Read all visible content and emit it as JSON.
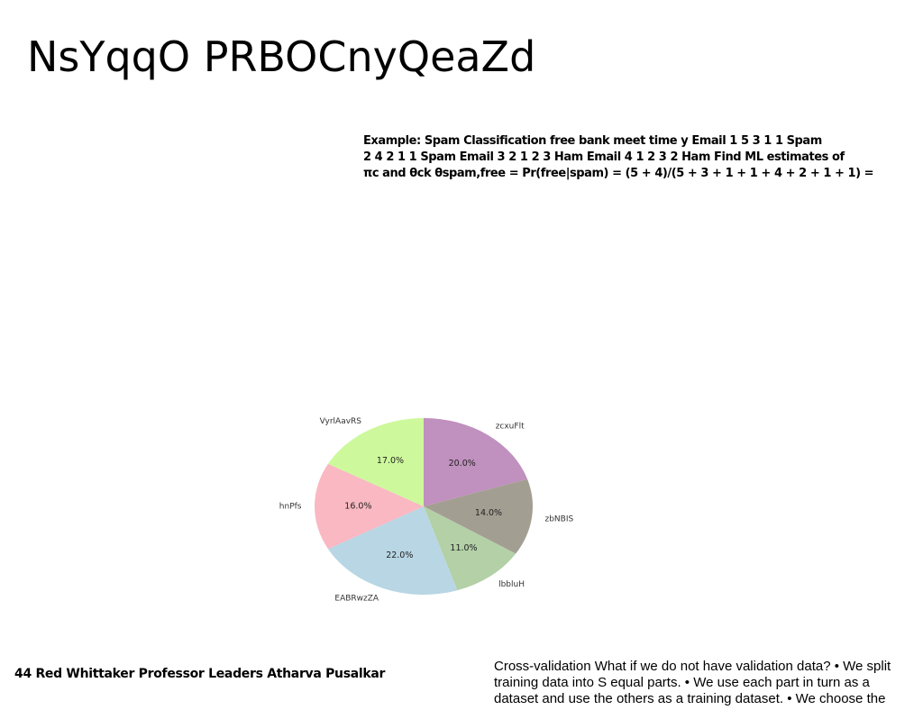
{
  "slide": {
    "title": "NsYqqO PRBOCnyQeaZd",
    "example_lines": [
      "Example: Spam Classification free bank meet time y Email 1 5 3 1 1 Spam",
      "2 4 2 1 1 Spam Email 3 2 1 2 3 Ham Email 4 1 2 3 2 Ham Find ML estimates of",
      "πc and θck θspam,free = Pr(free|spam) = (5 + 4)/(5 + 3 + 1 + 1 + 4 + 2 + 1 + 1) ="
    ],
    "footer_left": "44 Red Whittaker Professor Leaders Atharva Pusalkar",
    "footer_right_lines": [
      "Cross-validation What if we do not have validation data? • We split",
      "training data into S equal parts. • We use each part in turn as a",
      "dataset and use the others as a training dataset. • We choose the"
    ]
  },
  "chart_data": {
    "type": "pie",
    "start_angle_deg": 90,
    "direction": "clockwise",
    "slices": [
      {
        "label": "zcxuFlt",
        "value": 20.0,
        "pct_label": "20.0%",
        "color": "#c090be"
      },
      {
        "label": "zbNBIS",
        "value": 14.0,
        "pct_label": "14.0%",
        "color": "#a39e92"
      },
      {
        "label": "lbbluH",
        "value": 11.0,
        "pct_label": "11.0%",
        "color": "#b3d0a6"
      },
      {
        "label": "EABRwzZA",
        "value": 22.0,
        "pct_label": "22.0%",
        "color": "#b8d6e4"
      },
      {
        "label": "hnPfs",
        "value": 16.0,
        "pct_label": "16.0%",
        "color": "#f9b8c2"
      },
      {
        "label": "VyrlAavRS",
        "value": 17.0,
        "pct_label": "17.0%",
        "color": "#cdf99c"
      }
    ]
  }
}
